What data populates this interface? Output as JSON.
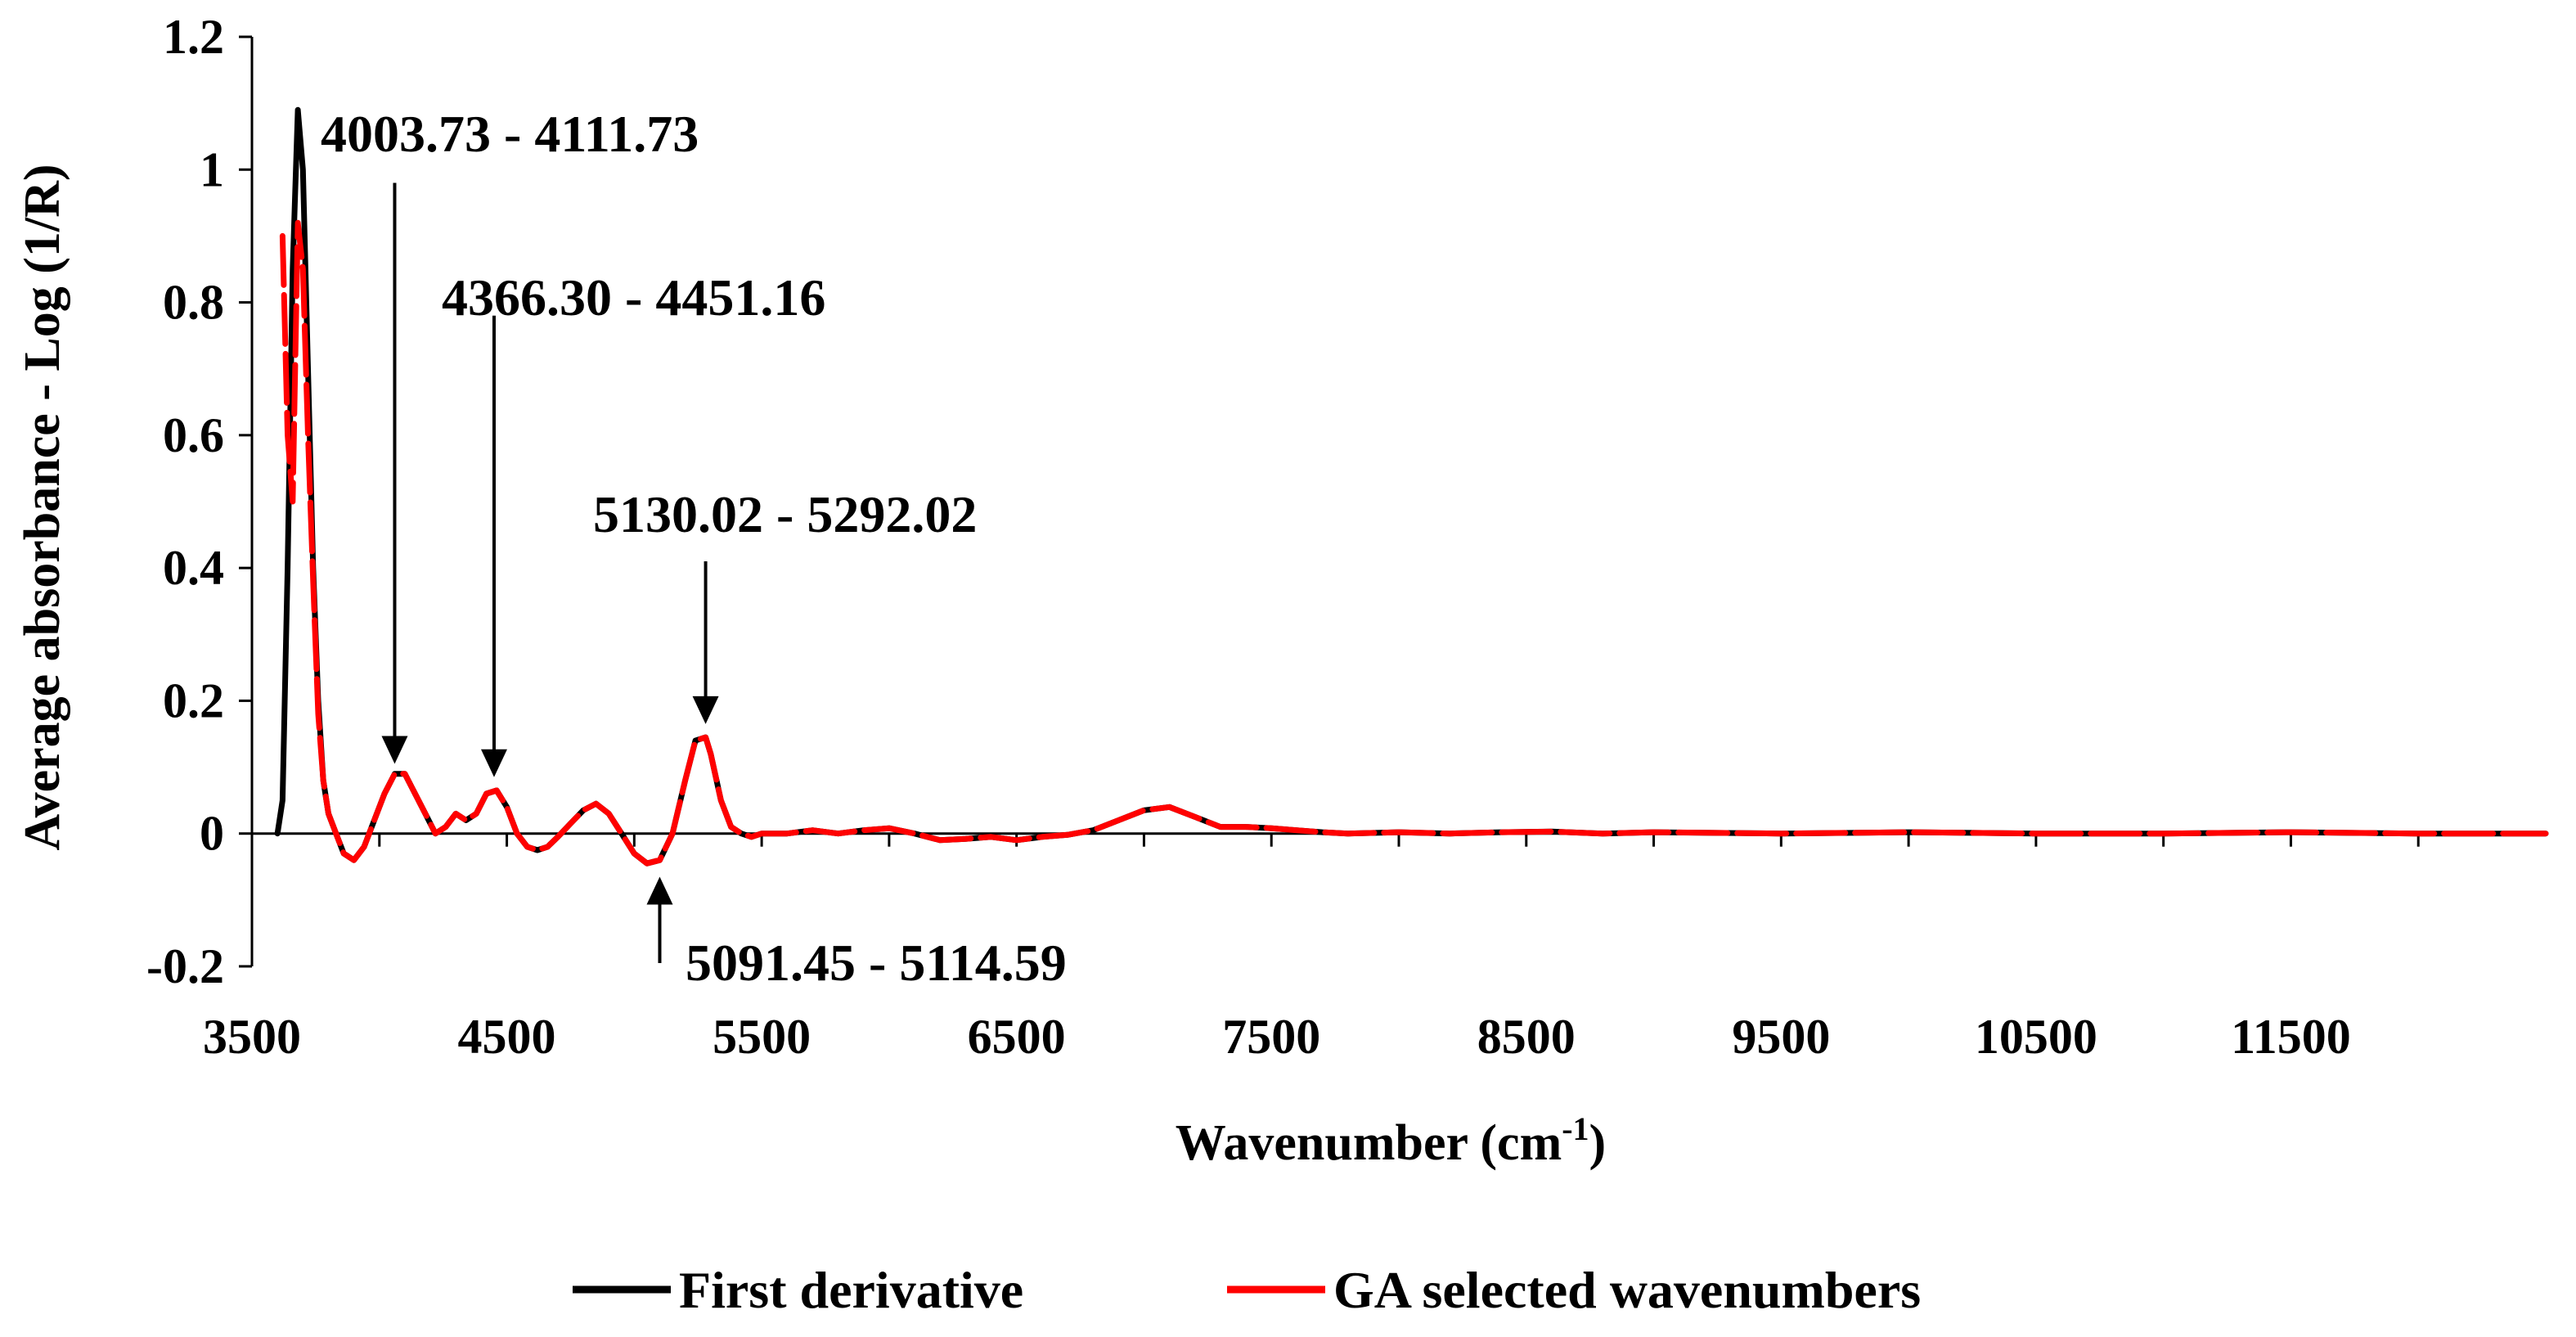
{
  "chart_data": {
    "type": "line",
    "xlabel": "Wavenumber (cm",
    "xlabel_sup": "-1",
    "xlabel_end": ")",
    "ylabel": "Average absorbance - Log (1/R)",
    "xlim": [
      3500,
      12500
    ],
    "ylim": [
      -0.2,
      1.2
    ],
    "x_ticks": [
      3500,
      4500,
      5500,
      6500,
      7500,
      8500,
      9500,
      10500,
      11500
    ],
    "x_tick_labels": [
      "3500",
      "4500",
      "5500",
      "6500",
      "7500",
      "8500",
      "9500",
      "10500",
      "11500"
    ],
    "y_ticks": [
      -0.2,
      0,
      0.2,
      0.4,
      0.6,
      0.8,
      1,
      1.2
    ],
    "y_tick_labels": [
      "-0.2",
      "0",
      "0.2",
      "0.4",
      "0.6",
      "0.8",
      "1",
      "1.2"
    ],
    "grid": false,
    "legend_position": "bottom",
    "series": [
      {
        "name": "First derivative",
        "color": "#000000",
        "x": [
          3600,
          3620,
          3640,
          3660,
          3680,
          3700,
          3720,
          3740,
          3760,
          3780,
          3800,
          3830,
          3860,
          3900,
          3940,
          3980,
          4020,
          4060,
          4100,
          4140,
          4180,
          4220,
          4260,
          4300,
          4340,
          4380,
          4420,
          4460,
          4500,
          4540,
          4580,
          4620,
          4660,
          4700,
          4750,
          4800,
          4850,
          4900,
          4950,
          5000,
          5050,
          5100,
          5150,
          5200,
          5240,
          5280,
          5300,
          5340,
          5380,
          5420,
          5460,
          5500,
          5600,
          5700,
          5800,
          5900,
          6000,
          6100,
          6200,
          6300,
          6400,
          6500,
          6600,
          6700,
          6800,
          6900,
          7000,
          7100,
          7200,
          7300,
          7400,
          7500,
          7600,
          7700,
          7800,
          8000,
          8200,
          8400,
          8600,
          8800,
          9000,
          9500,
          10000,
          10500,
          11000,
          11500,
          12000,
          12500
        ],
        "y": [
          0,
          0.05,
          0.4,
          0.85,
          1.09,
          1.0,
          0.7,
          0.4,
          0.2,
          0.08,
          0.03,
          0.0,
          -0.03,
          -0.04,
          -0.02,
          0.02,
          0.06,
          0.09,
          0.09,
          0.06,
          0.03,
          0.0,
          0.01,
          0.03,
          0.02,
          0.03,
          0.06,
          0.065,
          0.04,
          0.0,
          -0.02,
          -0.025,
          -0.02,
          -0.005,
          0.015,
          0.035,
          0.045,
          0.03,
          0.0,
          -0.03,
          -0.045,
          -0.04,
          0.0,
          0.08,
          0.14,
          0.145,
          0.12,
          0.05,
          0.01,
          0.0,
          -0.005,
          0.0,
          0.0,
          0.005,
          0.0,
          0.005,
          0.008,
          0.0,
          -0.01,
          -0.008,
          -0.005,
          -0.01,
          -0.005,
          -0.002,
          0.005,
          0.02,
          0.035,
          0.04,
          0.025,
          0.01,
          0.01,
          0.008,
          0.005,
          0.002,
          0.0,
          0.002,
          0.0,
          0.002,
          0.003,
          0.0,
          0.002,
          0.0,
          0.002,
          0.0,
          0.0,
          0.002,
          0.0,
          0.0
        ]
      },
      {
        "name": "GA selected wavenumbers",
        "color": "#ff0000",
        "x": [
          3620,
          3640,
          3660,
          3680,
          3700,
          3720,
          3740,
          3760,
          3780,
          3800,
          3830,
          3860,
          3900,
          3940,
          3980,
          4020,
          4060,
          4100,
          4140,
          4180,
          4220,
          4260,
          4300,
          4340,
          4380,
          4420,
          4460,
          4500,
          4540,
          4580,
          4620,
          4660,
          4700,
          4750,
          4800,
          4850,
          4900,
          4950,
          5000,
          5050,
          5100,
          5150,
          5200,
          5240,
          5280,
          5300,
          5340,
          5380,
          5420,
          5460,
          5500,
          5600,
          5700,
          5800,
          5900,
          6000,
          6100,
          6200,
          6300,
          6400,
          6500,
          6600,
          6700,
          6800,
          6900,
          7000,
          7100,
          7200,
          7300,
          7400,
          7500,
          7600,
          7700,
          7800,
          8000,
          8200,
          8400,
          8600,
          8800,
          9000,
          9500,
          10000,
          10500,
          11000,
          11500,
          12000,
          12500
        ],
        "y": [
          0.9,
          0.6,
          0.5,
          0.92,
          0.85,
          0.6,
          0.38,
          0.18,
          0.08,
          0.03,
          0.0,
          -0.03,
          -0.04,
          -0.02,
          0.02,
          0.06,
          0.09,
          0.09,
          0.06,
          0.03,
          0.0,
          0.01,
          0.03,
          0.02,
          0.03,
          0.06,
          0.065,
          0.04,
          0.0,
          -0.02,
          -0.025,
          -0.02,
          -0.005,
          0.015,
          0.035,
          0.045,
          0.03,
          0.0,
          -0.03,
          -0.045,
          -0.04,
          0.0,
          0.08,
          0.14,
          0.145,
          0.12,
          0.05,
          0.01,
          0.0,
          -0.005,
          0.0,
          0.0,
          0.005,
          0.0,
          0.005,
          0.008,
          0.0,
          -0.01,
          -0.008,
          -0.005,
          -0.01,
          -0.005,
          -0.002,
          0.005,
          0.02,
          0.035,
          0.04,
          0.025,
          0.01,
          0.01,
          0.008,
          0.005,
          0.002,
          0.0,
          0.002,
          0.0,
          0.002,
          0.003,
          0.0,
          0.002,
          0.0,
          0.002,
          0.0,
          0.0,
          0.002,
          0.0,
          0.0
        ]
      }
    ],
    "annotations": [
      {
        "text": "4003.73 - 4111.73",
        "arrow_x": 4060,
        "arrow_tip_y": 0.105,
        "arrow_tail_y": 0.98,
        "direction": "down"
      },
      {
        "text": "4366.30 - 4451.16",
        "arrow_x": 4450,
        "arrow_tip_y": 0.085,
        "arrow_tail_y": 0.78,
        "direction": "down"
      },
      {
        "text": "5130.02 - 5292.02",
        "arrow_x": 5280,
        "arrow_tip_y": 0.165,
        "arrow_tail_y": 0.41,
        "direction": "down"
      },
      {
        "text": "5091.45 - 5114.59",
        "arrow_x": 5100,
        "arrow_tip_y": -0.065,
        "arrow_tail_y": -0.195,
        "direction": "up"
      }
    ]
  }
}
